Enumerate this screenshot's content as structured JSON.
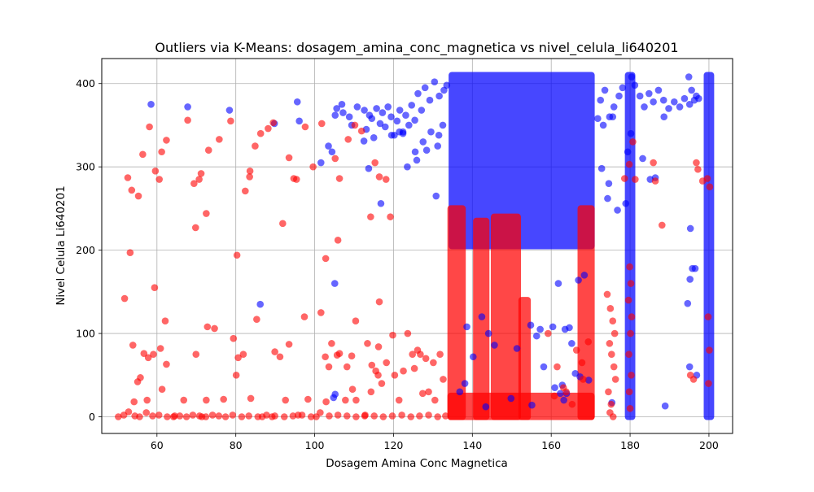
{
  "chart_data": {
    "type": "scatter",
    "title": "Outliers via K-Means: dosagem_amina_conc_magnetica vs nivel_celula_li640201",
    "xlabel": "Dosagem Amina Conc Magnetica",
    "ylabel": "Nivel Celula Li640201",
    "xlim": [
      46,
      206
    ],
    "ylim": [
      -20,
      430
    ],
    "xticks": [
      60,
      80,
      100,
      120,
      140,
      160,
      180,
      200
    ],
    "yticks": [
      0,
      100,
      200,
      300,
      400
    ],
    "grid": true,
    "legend": "none",
    "colors": {
      "normal": "#0000ff",
      "outlier": "#ff0000"
    },
    "point_alpha": 0.6,
    "series": [
      {
        "color": "#0000ff",
        "x": [
          58.5,
          67.8,
          78.4,
          89.8,
          95.6,
          96.1,
          101.6,
          103.5,
          104.4,
          105.2,
          105.6,
          106.9,
          107.2,
          108.8,
          109.4,
          110.8,
          112.6,
          113.1,
          113.9,
          114.5,
          115.7,
          116.6,
          117.2,
          117.9,
          118.6,
          119.4,
          120.2,
          120.9,
          121.6,
          122.4,
          123.1,
          123.9,
          124.6,
          125.4,
          126.2,
          127.1,
          128.0,
          129.2,
          130.4,
          131.6,
          132.8,
          133.5,
          112.5,
          113.7,
          115.0,
          116.8,
          119.5,
          121.5,
          123.5,
          125.5,
          127.5,
          129.5,
          131.5,
          132.5,
          86.2,
          105.1,
          104.8,
          105.2,
          122.4,
          130.8,
          125.9,
          128.4,
          131.2,
          172.5,
          173.6,
          174.8,
          175.9,
          177.2,
          178.1,
          180.4,
          181.2,
          182.5,
          183.6,
          184.8,
          185.9,
          187.2,
          188.5,
          189.8,
          191.2,
          192.6,
          193.8,
          195.1,
          196.3,
          197.4,
          180.2,
          185.1,
          186.4,
          171.8,
          173.2,
          174.3,
          175.6,
          176.8,
          179.4,
          183.2,
          188.6,
          194.9,
          195.6,
          196.8,
          195.3,
          195.8,
          194.6,
          195.2,
          196.5,
          172.8,
          174.6,
          178.9,
          188.9,
          195.1,
          196.9,
          175.4,
          161.8,
          163.5,
          164.6,
          166.9,
          168.4,
          163.2,
          162.8,
          166.1,
          167.3,
          169.5,
          157.2,
          160.4,
          163.9,
          136.8,
          138.6,
          142.4,
          144.1,
          156.3,
          158.1,
          140.2,
          145.6,
          151.3,
          154.8,
          160.9,
          165.2,
          138.1,
          143.4,
          149.8,
          155.1,
          162.3
        ],
        "y": [
          375,
          372,
          368,
          352,
          378,
          355,
          305,
          325,
          318,
          362,
          370,
          375,
          365,
          360,
          350,
          372,
          368,
          345,
          362,
          358,
          370,
          352,
          365,
          348,
          372,
          360,
          338,
          355,
          368,
          342,
          362,
          350,
          374,
          356,
          388,
          368,
          395,
          380,
          402,
          385,
          392,
          398,
          331,
          298,
          335,
          256,
          338,
          342,
          300,
          318,
          330,
          342,
          338,
          350,
          135,
          160,
          23,
          27,
          340,
          265,
          308,
          320,
          325,
          380,
          392,
          360,
          372,
          385,
          395,
          408,
          398,
          385,
          372,
          388,
          378,
          392,
          380,
          370,
          378,
          372,
          382,
          375,
          380,
          382,
          340,
          285,
          287,
          358,
          350,
          262,
          360,
          248,
          318,
          310,
          360,
          408,
          392,
          385,
          226,
          178,
          136,
          165,
          178,
          298,
          280,
          256,
          13,
          60,
          50,
          17,
          160,
          105,
          107,
          164,
          170,
          20,
          38,
          52,
          48,
          44,
          105,
          108,
          28,
          30,
          108,
          120,
          100,
          97,
          60,
          72,
          86,
          82,
          110,
          35,
          88,
          40,
          12,
          22,
          14,
          28
        ]
      },
      {
        "color": "#ff0000",
        "x": [
          52.6,
          53.6,
          55.3,
          56.4,
          58.1,
          59.6,
          61.2,
          62.4,
          67.8,
          69.4,
          71.2,
          73.1,
          75.8,
          78.7,
          82.4,
          83.6,
          84.9,
          86.3,
          88.2,
          89.5,
          93.5,
          95.4,
          97.6,
          99.6,
          101.8,
          105.2,
          106.3,
          108.5,
          110.2,
          111.9,
          114.2,
          116.4,
          118.1,
          53.2,
          59.4,
          60.6,
          62.1,
          69.8,
          70.7,
          72.5,
          80.3,
          83.5,
          91.9,
          94.7,
          102.8,
          105.9,
          110.4,
          116.4,
          119.2,
          115.3,
          51.8,
          53.9,
          55.1,
          56.7,
          57.8,
          60.9,
          62.4,
          69.9,
          72.8,
          74.6,
          79.4,
          80.6,
          81.9,
          85.3,
          89.9,
          91.2,
          93.5,
          97.4,
          101.6,
          102.7,
          104.3,
          105.7,
          108.2,
          109.6,
          113.4,
          114.5,
          116.2,
          119.8,
          122.5,
          125.3,
          126.8,
          128.2,
          130.1,
          54.2,
          55.8,
          57.5,
          59.1,
          61.3,
          64.5,
          66.8,
          71.4,
          72.5,
          76.9,
          80.1,
          83.8,
          86.7,
          89.2,
          92.6,
          95.8,
          98.3,
          100.4,
          102.9,
          103.6,
          106.3,
          107.8,
          109.4,
          110.5,
          112.7,
          114.3,
          115.5,
          116.1,
          117.0,
          118.2,
          120.3,
          121.4,
          123.6,
          124.8,
          126.1,
          127.4,
          128.9,
          130.5,
          131.8,
          132.6,
          50.2,
          51.6,
          52.8,
          54.4,
          55.6,
          57.3,
          58.9,
          60.5,
          62.6,
          64.2,
          65.8,
          67.5,
          69.1,
          70.8,
          72.4,
          74.1,
          75.7,
          77.4,
          79.2,
          81.5,
          83.3,
          85.6,
          87.8,
          89.9,
          92.3,
          94.5,
          96.8,
          99.1,
          101.4,
          103.7,
          105.9,
          108.2,
          110.5,
          112.8,
          115.1,
          117.4,
          119.7,
          122.1,
          124.4,
          126.6,
          128.9,
          131.2,
          133.2,
          178.6,
          179.8,
          180.7,
          181.3,
          185.9,
          186.4,
          188.1,
          196.8,
          197.2,
          198.4,
          195.3,
          196.1,
          174.2,
          175.0,
          175.6,
          176.1,
          174.8,
          175.3,
          175.9,
          176.3,
          174.5,
          175.2,
          174.9,
          175.7,
          179.9,
          180.2,
          179.6,
          180.4,
          180.1,
          179.7,
          180.3,
          179.8,
          180.0,
          199.6,
          200.2,
          199.8,
          200.1,
          199.9,
          159.2,
          161.5,
          163.8,
          166.4,
          168.1,
          160.8,
          165.3,
          167.8,
          169.4,
          163.1
        ],
        "y": [
          287,
          272,
          265,
          315,
          348,
          295,
          318,
          332,
          356,
          280,
          292,
          320,
          333,
          355,
          271,
          295,
          325,
          340,
          346,
          353,
          311,
          285,
          348,
          300,
          352,
          310,
          286,
          333,
          350,
          343,
          240,
          288,
          285,
          197,
          155,
          285,
          115,
          227,
          285,
          244,
          194,
          288,
          232,
          286,
          190,
          212,
          115,
          138,
          240,
          305,
          142,
          86,
          42,
          76,
          71,
          82,
          63,
          75,
          108,
          106,
          94,
          71,
          75,
          117,
          78,
          72,
          87,
          120,
          125,
          72,
          88,
          74,
          60,
          33,
          88,
          62,
          84,
          98,
          55,
          58,
          75,
          70,
          65,
          18,
          47,
          20,
          75,
          33,
          1,
          20,
          0,
          20,
          21,
          50,
          22,
          0,
          0,
          20,
          2,
          21,
          0,
          18,
          60,
          76,
          20,
          73,
          20,
          1,
          30,
          55,
          50,
          40,
          65,
          50,
          20,
          100,
          75,
          80,
          28,
          30,
          20,
          75,
          45,
          0,
          2,
          6,
          1,
          0,
          5,
          1,
          2,
          0,
          0,
          1,
          0,
          2,
          1,
          0,
          2,
          1,
          0,
          2,
          0,
          1,
          0,
          2,
          1,
          0,
          1,
          2,
          0,
          5,
          1,
          2,
          1,
          0,
          2,
          1,
          0,
          1,
          2,
          0,
          1,
          2,
          0,
          1,
          286,
          303,
          330,
          285,
          305,
          283,
          230,
          305,
          297,
          283,
          50,
          45,
          147,
          130,
          115,
          100,
          88,
          75,
          60,
          45,
          30,
          15,
          5,
          0,
          180,
          160,
          140,
          120,
          100,
          75,
          50,
          30,
          10,
          286,
          276,
          120,
          80,
          40,
          100,
          60,
          30,
          80,
          45,
          25,
          15,
          65,
          90,
          35
        ]
      }
    ],
    "vertical_bands": [
      {
        "color": "#0000ff",
        "x": [
          134.8,
          170.2
        ],
        "y": [
          205,
          410
        ]
      },
      {
        "color": "#ff0000",
        "x": [
          134.5,
          137.5
        ],
        "y": [
          0,
          250
        ]
      },
      {
        "color": "#ff0000",
        "x": [
          141.0,
          143.5
        ],
        "y": [
          0,
          235
        ]
      },
      {
        "color": "#ff0000",
        "x": [
          145.5,
          151.5
        ],
        "y": [
          0,
          240
        ]
      },
      {
        "color": "#ff0000",
        "x": [
          152.5,
          154.0
        ],
        "y": [
          0,
          140
        ]
      },
      {
        "color": "#ff0000",
        "x": [
          167.5,
          170.2
        ],
        "y": [
          0,
          250
        ]
      },
      {
        "color": "#ff0000",
        "x": [
          134.5,
          170.2
        ],
        "y": [
          0,
          25
        ]
      },
      {
        "color": "#0000ff",
        "x": [
          179.5,
          180.5
        ],
        "y": [
          0,
          410
        ]
      },
      {
        "color": "#0000ff",
        "x": [
          199.5,
          200.5
        ],
        "y": [
          0,
          410
        ]
      }
    ]
  }
}
